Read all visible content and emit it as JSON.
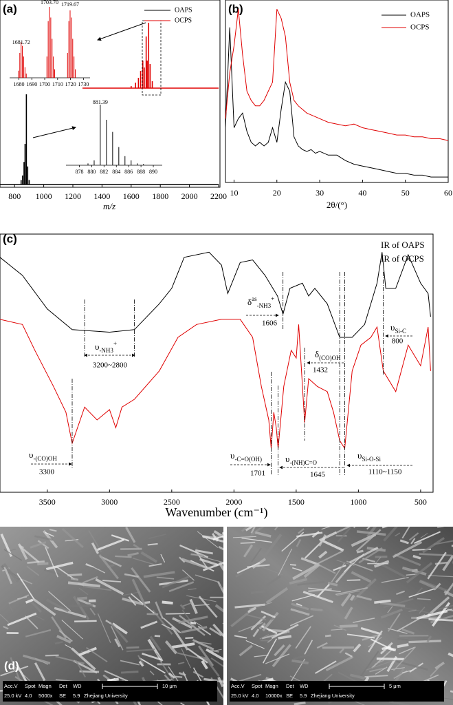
{
  "chart_data": [
    {
      "type": "mass-spectrum",
      "panel_label": "(a)",
      "xlabel": "m/z",
      "xlim": [
        700,
        2200
      ],
      "xticks": [
        800,
        1000,
        1200,
        1400,
        1600,
        1800,
        2000,
        2200
      ],
      "ylim": [
        0,
        100
      ],
      "series": [
        {
          "name": "OAPS",
          "color": "#000000",
          "x": [
            845,
            855,
            865,
            872,
            881,
            890,
            900
          ],
          "values": [
            5,
            10,
            25,
            45,
            100,
            20,
            5
          ]
        },
        {
          "name": "OCPS",
          "color": "#e00000",
          "x": [
            1600,
            1630,
            1650,
            1665,
            1680,
            1690,
            1703,
            1710,
            1720,
            1730,
            1745
          ],
          "values": [
            3,
            8,
            15,
            25,
            40,
            30,
            75,
            40,
            95,
            35,
            10
          ]
        }
      ],
      "insets": [
        {
          "color": "#e00000",
          "xlim": [
            1676,
            1733
          ],
          "xticks": [
            1680,
            1690,
            1700,
            1710,
            1720,
            1730
          ],
          "ylim": [
            0,
            100
          ],
          "x": [
            1679.7,
            1680.7,
            1681.72,
            1682.7,
            1683.7,
            1684.7,
            1685.7,
            1701.7,
            1702.7,
            1703.7,
            1704.7,
            1705.7,
            1706.7,
            1707.7,
            1717.7,
            1718.7,
            1719.67,
            1720.7,
            1721.7,
            1722.7,
            1723.7
          ],
          "values": [
            10,
            35,
            50,
            45,
            30,
            15,
            6,
            30,
            80,
            100,
            85,
            55,
            30,
            12,
            35,
            80,
            95,
            85,
            55,
            30,
            12
          ],
          "peak_labels": [
            {
              "value": 1681.72,
              "label": "1681.72"
            },
            {
              "value": 1703.7,
              "label": "1703.70"
            },
            {
              "value": 1719.67,
              "label": "1719.67"
            }
          ]
        },
        {
          "color": "#000000",
          "xlim": [
            876.5,
            891
          ],
          "xticks": [
            878,
            880,
            882,
            884,
            886,
            888,
            890
          ],
          "ylim": [
            0,
            100
          ],
          "x": [
            879.4,
            880.4,
            881.39,
            882.4,
            883.4,
            884.4,
            885.4,
            886.4,
            887.4,
            888.4
          ],
          "values": [
            3,
            8,
            100,
            75,
            55,
            30,
            15,
            8,
            3,
            2
          ],
          "peak_labels": [
            {
              "value": 881.39,
              "label": "881.39"
            }
          ]
        }
      ]
    },
    {
      "type": "line",
      "panel_label": "(b)",
      "xlabel": "2θ/(°)",
      "xlim": [
        8,
        60
      ],
      "xticks": [
        10,
        20,
        30,
        40,
        50,
        60
      ],
      "ylim": [
        0,
        100
      ],
      "x": [
        8,
        9,
        10,
        11,
        12,
        13,
        14,
        15,
        16,
        17,
        18,
        19,
        20,
        21,
        22,
        23,
        24,
        25,
        26,
        27,
        28,
        29,
        30,
        32,
        34,
        36,
        38,
        40,
        42,
        44,
        46,
        48,
        50,
        52,
        54,
        56,
        58,
        60
      ],
      "series": [
        {
          "name": "OAPS",
          "color": "#000000",
          "values": [
            30,
            85,
            30,
            35,
            38,
            28,
            22,
            20,
            22,
            20,
            22,
            30,
            22,
            40,
            55,
            50,
            25,
            20,
            18,
            17,
            18,
            16,
            17,
            15,
            15,
            12,
            10,
            9,
            8,
            7,
            6,
            5,
            5,
            4,
            4,
            3,
            3,
            3
          ]
        },
        {
          "name": "OCPS",
          "color": "#e00000",
          "values": [
            35,
            60,
            75,
            95,
            70,
            50,
            45,
            42,
            42,
            45,
            50,
            55,
            95,
            90,
            80,
            55,
            45,
            42,
            40,
            38,
            37,
            36,
            35,
            33,
            32,
            31,
            32,
            30,
            29,
            28,
            27,
            26,
            26,
            25,
            25,
            24,
            24,
            23
          ]
        }
      ]
    },
    {
      "type": "line",
      "panel_label": "(c)",
      "xlabel": "Wavenumber (cm⁻¹)",
      "xlim": [
        3880,
        400
      ],
      "xticks": [
        3500,
        3000,
        2500,
        2000,
        1500,
        1000,
        500
      ],
      "ylim": [
        0,
        100
      ],
      "series": [
        {
          "name": "IR of OAPS",
          "color": "#000000",
          "x": [
            3880,
            3700,
            3500,
            3300,
            3000,
            2800,
            2600,
            2500,
            2400,
            2200,
            2100,
            2050,
            1950,
            1850,
            1750,
            1650,
            1606,
            1550,
            1450,
            1400,
            1350,
            1250,
            1150,
            1050,
            950,
            850,
            810,
            780,
            700,
            600,
            500,
            440,
            420
          ],
          "values": [
            91,
            84,
            71,
            63,
            62,
            63,
            73,
            79,
            91,
            93,
            88,
            77,
            89,
            90,
            84,
            76,
            69,
            79,
            81,
            76,
            79,
            73,
            60,
            60,
            65,
            81,
            93,
            79,
            79,
            92,
            81,
            77,
            68
          ]
        },
        {
          "name": "IR of OCPS",
          "color": "#e00000",
          "x": [
            3880,
            3700,
            3600,
            3450,
            3350,
            3300,
            3200,
            3100,
            3000,
            2950,
            2900,
            2800,
            2600,
            2450,
            2300,
            2100,
            1950,
            1850,
            1780,
            1720,
            1701,
            1680,
            1660,
            1645,
            1600,
            1540,
            1500,
            1480,
            1432,
            1400,
            1330,
            1250,
            1200,
            1150,
            1110,
            1050,
            980,
            900,
            850,
            800,
            700,
            600,
            500,
            440,
            420
          ],
          "values": [
            67,
            65,
            55,
            41,
            31,
            19,
            33,
            28,
            32,
            25,
            33,
            36,
            47,
            60,
            65,
            67,
            67,
            60,
            41,
            28,
            17,
            31,
            25,
            17,
            41,
            55,
            52,
            65,
            27,
            44,
            41,
            39,
            31,
            20,
            17,
            47,
            57,
            60,
            64,
            47,
            39,
            57,
            49,
            64,
            47
          ]
        }
      ],
      "annotations": [
        {
          "symbol": "υ",
          "sub": "-NH3",
          "sup_after": "+",
          "text": "3200~2800",
          "lines": [
            3200,
            2800
          ]
        },
        {
          "symbol": "δ",
          "sup": "as",
          "sub": "-NH3",
          "sup_after": "+",
          "text": "1606",
          "lines": [
            1606
          ]
        },
        {
          "symbol": "δ",
          "sub": "(CO)OH",
          "text": "1432",
          "lines": [
            1432
          ]
        },
        {
          "symbol": "υ",
          "sub": "Si-C",
          "text": "800",
          "lines": [
            800
          ]
        },
        {
          "symbol": "υ",
          "sub": "-(CO)OH",
          "text": "3300",
          "lines": [
            3300
          ]
        },
        {
          "symbol": "υ",
          "sub": "-C=O(OH)",
          "text": "1701",
          "lines": [
            1701
          ]
        },
        {
          "symbol": "υ",
          "sub": "-(NH)C=O",
          "text": "1645",
          "lines": [
            1645
          ]
        },
        {
          "symbol": "υ",
          "sub": "Si-O-Si",
          "text": "1110~1150",
          "lines": [
            1150,
            1110
          ]
        }
      ]
    }
  ],
  "figure_d": {
    "panel_label": "(d)",
    "images": [
      {
        "header": [
          "Acc.V",
          "Spot",
          "Magn",
          "Det",
          "WD"
        ],
        "values": [
          "25.0 kV",
          "4.0",
          "5000x",
          "SE",
          "5.9"
        ],
        "institution": "Zhejiang University",
        "scale": "10 μm"
      },
      {
        "header": [
          "Acc.V",
          "Spot",
          "Magn",
          "Det",
          "WD"
        ],
        "values": [
          "25.0 kV",
          "4.0",
          "10000x",
          "SE",
          "5.9"
        ],
        "institution": "Zhejiang University",
        "scale": "5 μm"
      }
    ]
  }
}
